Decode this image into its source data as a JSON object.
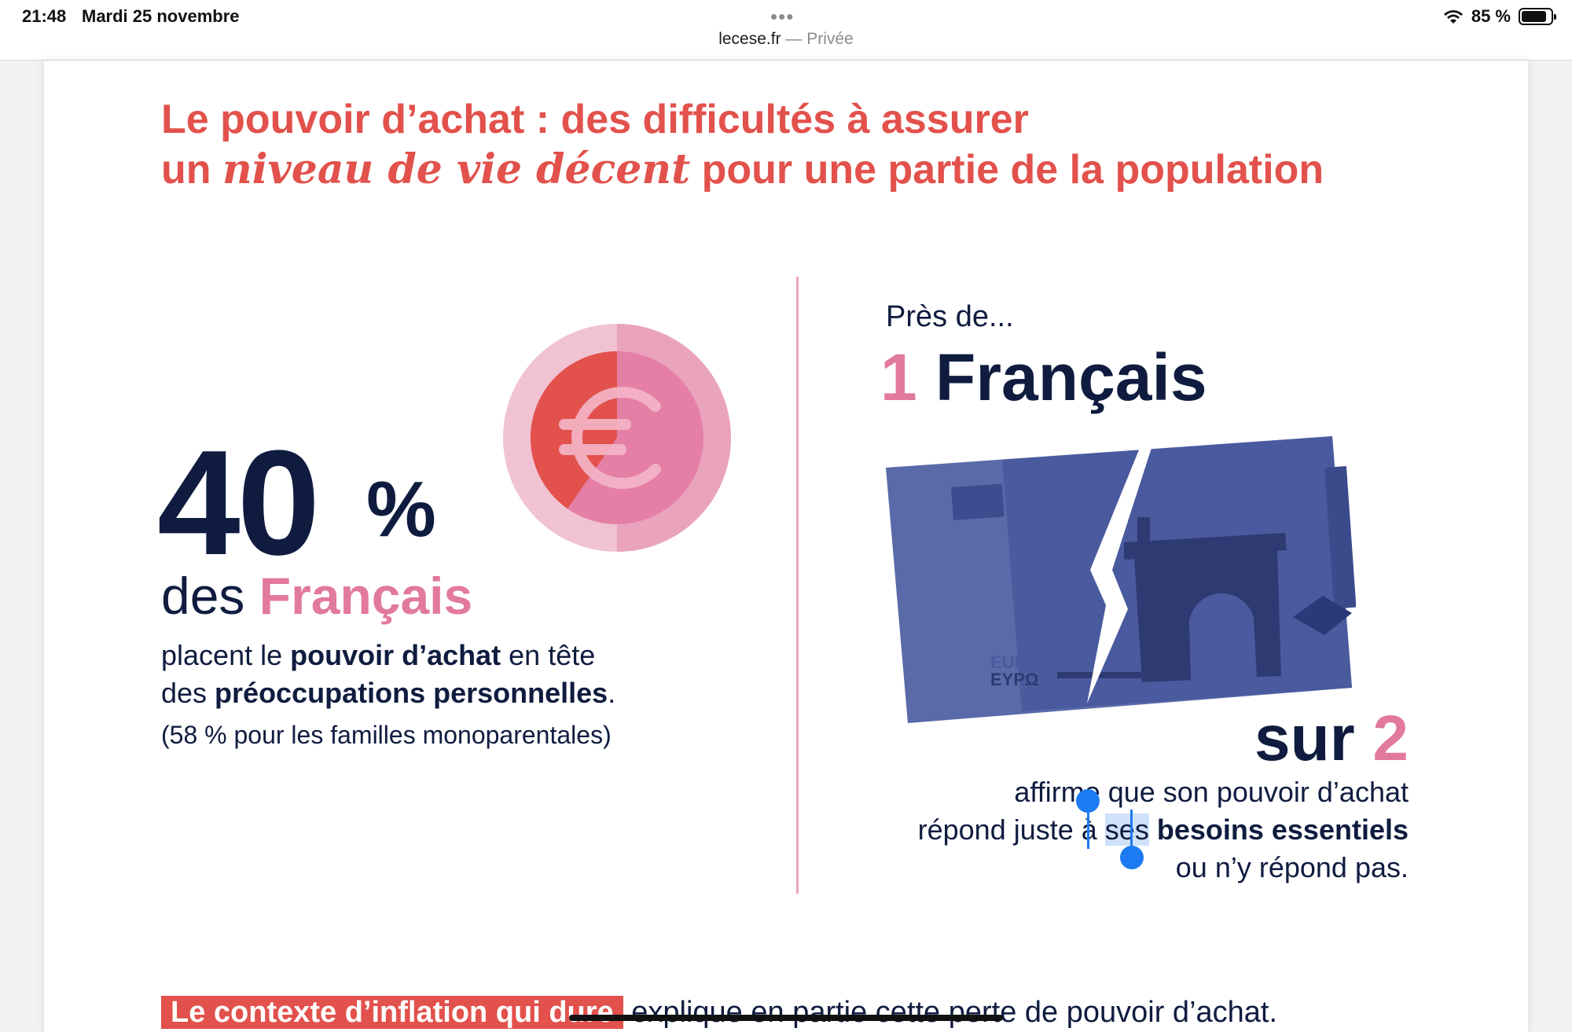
{
  "status_bar": {
    "time": "21:48",
    "date": "Mardi 25 novembre",
    "dots": "•••",
    "battery": "85 %",
    "battery_level": 0.85
  },
  "url_bar": {
    "domain": "lecese.fr",
    "mode": " — Privée"
  },
  "title": {
    "line1": "Le pouvoir d’achat : des difficultés à assurer",
    "line2_pre": "un ",
    "line2_ital": "niveau de vie décent",
    "line2_post": " pour une partie de la population"
  },
  "left": {
    "big_number": "40",
    "pct_sign": "%",
    "des": "des ",
    "francais": "Français",
    "desc_1": "placent le ",
    "desc_bold_1": "pouvoir d’achat",
    "desc_2": " en tête",
    "desc_3": "des ",
    "desc_bold_2": "préoccupations personnelles",
    "desc_4": ".",
    "note": "(58 % pour les familles monoparentales)",
    "coin_symbol": "euro-icon"
  },
  "right": {
    "pres_de": "Près de...",
    "one": "1",
    "francais": " Français",
    "note_text_1": "EURO",
    "note_text_2": "EYPΩ",
    "sur": "sur ",
    "two": "2",
    "aff_1": "affirme que son pouvoir d’achat",
    "aff_2": "répond juste à ",
    "aff_sel": "ses",
    "aff_space": " ",
    "aff_bold": "besoins essentiels",
    "aff_3": "ou n’y répond pas."
  },
  "bottom": {
    "highlight": "Le contexte d’inflation qui dure",
    "rest": " explique en partie cette perte de pouvoir d’achat."
  },
  "colors": {
    "red": "#e2514b",
    "pink": "#e2799f",
    "navy": "#0f1c3f",
    "note_blue": "#5566a8"
  }
}
